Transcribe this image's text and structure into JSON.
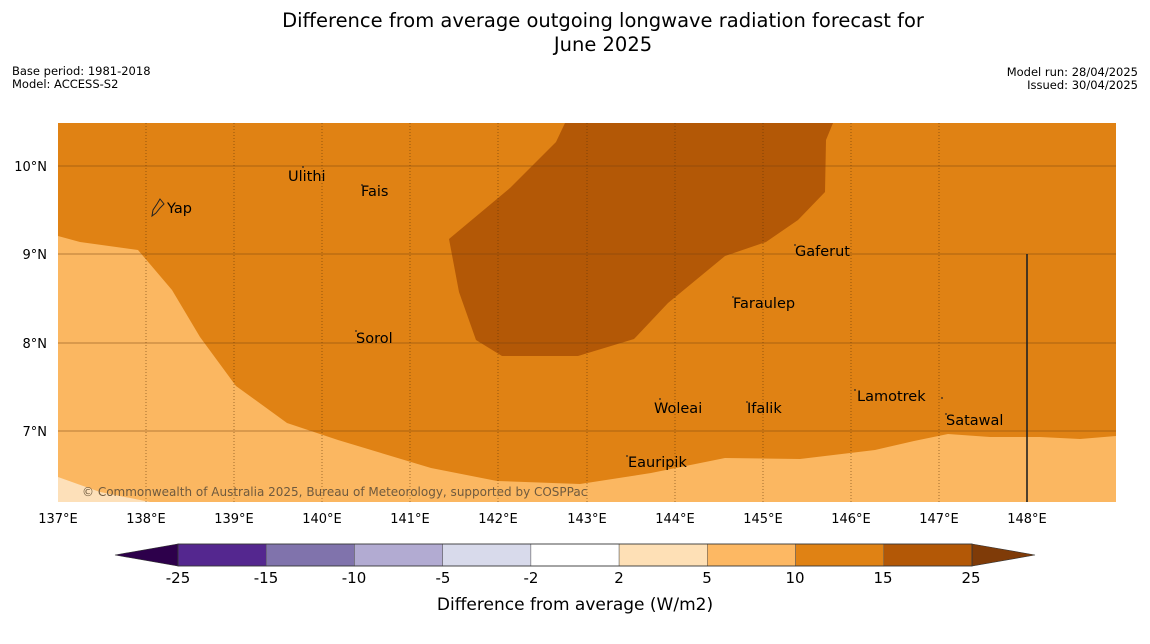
{
  "title": {
    "line1": "Difference from average outgoing longwave radiation forecast for",
    "line2": "June 2025"
  },
  "meta_left": {
    "base_period": "Base period: 1981-2018",
    "model": "Model: ACCESS-S2"
  },
  "meta_right": {
    "model_run": "Model run: 28/04/2025",
    "issued": "Issued: 30/04/2025"
  },
  "map": {
    "extent": {
      "lon": [
        137,
        149
      ],
      "lat": [
        6.2,
        10.5
      ]
    },
    "lon_ticks": [
      "137°E",
      "138°E",
      "139°E",
      "140°E",
      "141°E",
      "142°E",
      "143°E",
      "144°E",
      "145°E",
      "146°E",
      "147°E",
      "148°E"
    ],
    "lat_ticks": [
      "10°N",
      "9°N",
      "8°N",
      "7°N"
    ],
    "copyright": "© Commonwealth of Australia 2025, Bureau of Meteorology, supported by COSPPac",
    "places": [
      {
        "name": "Yap"
      },
      {
        "name": "Ulithi"
      },
      {
        "name": "Fais"
      },
      {
        "name": "Gaferut"
      },
      {
        "name": "Faraulep"
      },
      {
        "name": "Sorol"
      },
      {
        "name": "Woleai"
      },
      {
        "name": "Ifalik"
      },
      {
        "name": "Lamotrek"
      },
      {
        "name": "Satawal"
      },
      {
        "name": "Eauripik"
      }
    ],
    "region_colors": {
      "5_to_10": "#fbb761",
      "10_to_15": "#e08214",
      "15_to_25": "#b35806"
    }
  },
  "colorbar": {
    "label": "Difference from average (W/m2)",
    "ticks": [
      "-25",
      "-15",
      "-10",
      "-5",
      "-2",
      "2",
      "5",
      "10",
      "15",
      "25"
    ],
    "colors": [
      "#54278f",
      "#8073ac",
      "#b2abd2",
      "#d8daeb",
      "#ffffff",
      "#fee0b6",
      "#fdb863",
      "#e08214",
      "#b35806"
    ],
    "under_color": "#2d004b",
    "over_color": "#7f3b08"
  }
}
